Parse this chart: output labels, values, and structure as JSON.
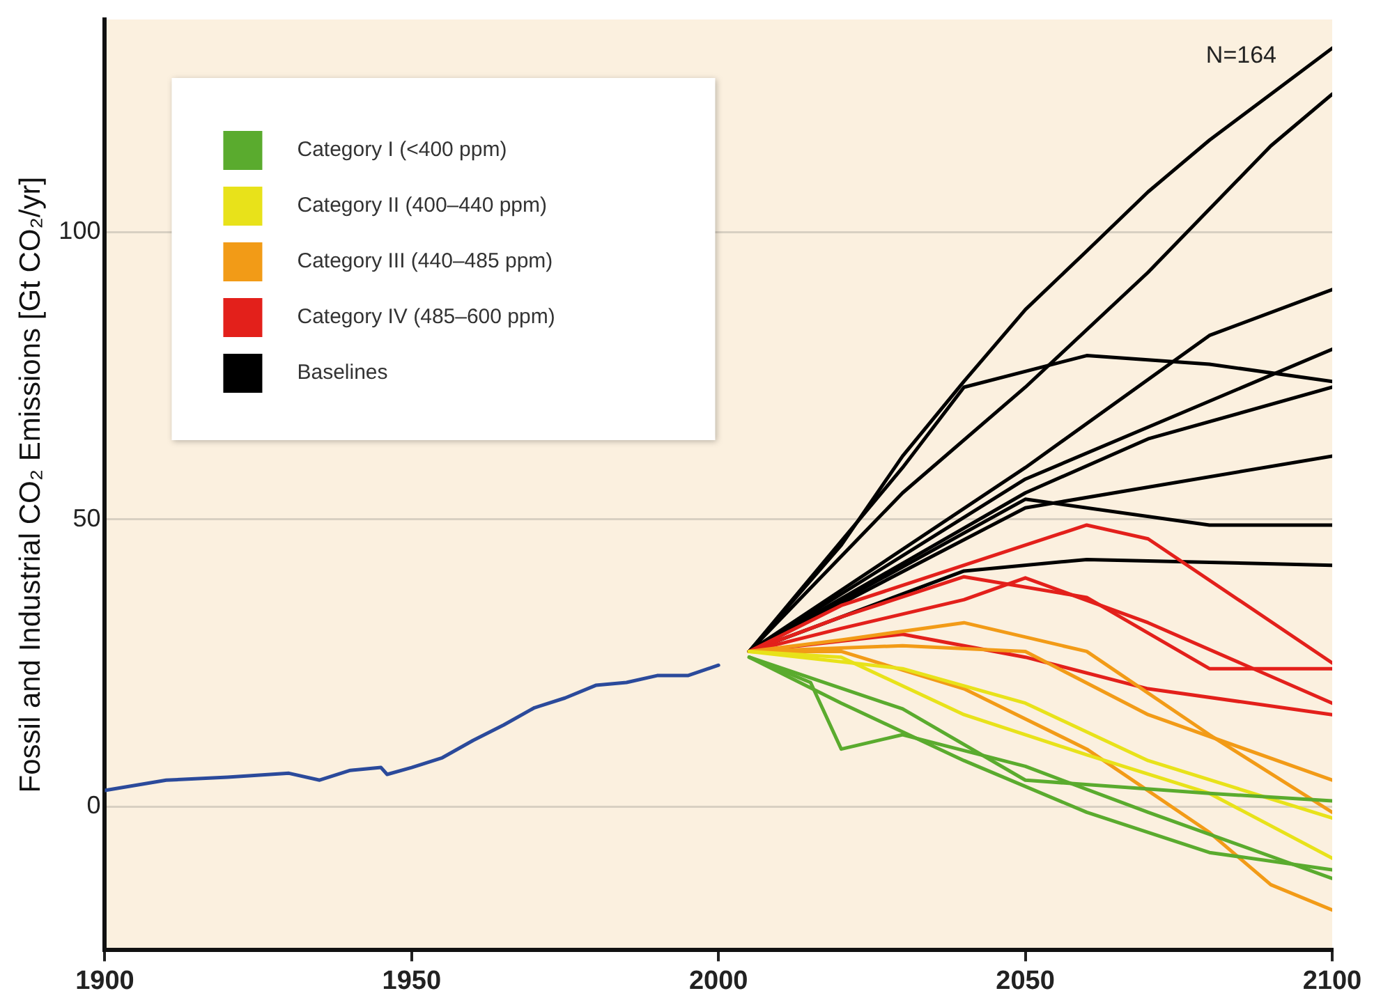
{
  "chart_data": {
    "type": "line",
    "ylabel": "Fossil and Industrial CO₂ Emissions [Gt CO₂/yr]",
    "xlim": [
      1900,
      2100
    ],
    "xticks": [
      1900,
      1950,
      2000,
      2050,
      2100
    ],
    "ylim": [
      -25,
      137
    ],
    "yticks": [
      0,
      50,
      100
    ],
    "grid": "y",
    "legend": "top left",
    "annotations": [
      "N=164"
    ],
    "series": [
      {
        "color": "#2b4a9b",
        "x": [
          1900,
          1910,
          1920,
          1930,
          1935,
          1940,
          1945,
          1946,
          1950,
          1955,
          1960,
          1965,
          1970,
          1975,
          1980,
          1985,
          1990,
          1995,
          2000
        ],
        "values": [
          2.8,
          4.6,
          5.1,
          5.8,
          4.6,
          6.3,
          6.8,
          5.6,
          6.8,
          8.5,
          11.5,
          14.2,
          17.2,
          18.9,
          21.1,
          21.6,
          22.8,
          22.8,
          24.6
        ]
      },
      {
        "name": "Category I (<400 ppm)",
        "color": "#5aab2e",
        "x": [
          2005,
          2015,
          2020,
          2030,
          2050,
          2070,
          2100
        ],
        "values": [
          26,
          21.6,
          10,
          12.5,
          7,
          -1,
          -12.5
        ]
      },
      {
        "color": "#5aab2e",
        "x": [
          2005,
          2020,
          2040,
          2060,
          2080,
          2100
        ],
        "values": [
          26,
          18,
          8,
          -1,
          -8,
          -11
        ]
      },
      {
        "color": "#5aab2e",
        "x": [
          2005,
          2030,
          2050,
          2080,
          2100
        ],
        "values": [
          26,
          17,
          4.6,
          2.3,
          1
        ]
      },
      {
        "name": "Category II (400–440 ppm)",
        "color": "#e8e21a",
        "x": [
          2005,
          2020,
          2040,
          2060,
          2080,
          2100
        ],
        "values": [
          27,
          26,
          16,
          9,
          2.3,
          -9
        ]
      },
      {
        "color": "#e8e21a",
        "x": [
          2005,
          2030,
          2050,
          2070,
          2100
        ],
        "values": [
          27,
          24,
          18,
          8,
          -2
        ]
      },
      {
        "name": "Category III (440–485 ppm)",
        "color": "#f29b17",
        "x": [
          2005,
          2020,
          2040,
          2060,
          2080,
          2100
        ],
        "values": [
          27,
          29,
          32,
          27,
          12.5,
          -1
        ]
      },
      {
        "color": "#f29b17",
        "x": [
          2005,
          2020,
          2040,
          2060,
          2080,
          2090,
          2100
        ],
        "values": [
          27,
          27,
          20.5,
          10,
          -4.5,
          -13.6,
          -18
        ]
      },
      {
        "color": "#f29b17",
        "x": [
          2005,
          2030,
          2050,
          2070,
          2100
        ],
        "values": [
          27,
          28,
          27,
          16,
          4.6
        ]
      },
      {
        "name": "Category IV (485–600 ppm)",
        "color": "#e3201b",
        "x": [
          2005,
          2020,
          2040,
          2060,
          2070,
          2100
        ],
        "values": [
          27,
          35,
          42,
          49,
          46.6,
          25
        ]
      },
      {
        "color": "#e3201b",
        "x": [
          2005,
          2020,
          2040,
          2050,
          2070,
          2100
        ],
        "values": [
          27,
          31,
          36,
          39.8,
          32,
          18
        ]
      },
      {
        "color": "#e3201b",
        "x": [
          2005,
          2030,
          2050,
          2070,
          2100
        ],
        "values": [
          27,
          30,
          26,
          20.5,
          16
        ]
      },
      {
        "color": "#e3201b",
        "x": [
          2005,
          2020,
          2040,
          2060,
          2080,
          2100
        ],
        "values": [
          27,
          33,
          40,
          36.4,
          24,
          24
        ]
      },
      {
        "name": "Baselines",
        "color": "#000000",
        "x": [
          2005,
          2020,
          2030,
          2040,
          2050,
          2060,
          2070,
          2080,
          2090,
          2100
        ],
        "values": [
          27,
          45.5,
          61,
          74,
          86.5,
          96.7,
          107,
          116,
          124,
          132
        ]
      },
      {
        "color": "#000000",
        "x": [
          2005,
          2030,
          2050,
          2070,
          2090,
          2100
        ],
        "values": [
          27,
          54.6,
          73,
          93,
          115,
          124
        ]
      },
      {
        "color": "#000000",
        "x": [
          2005,
          2030,
          2040,
          2060,
          2080,
          2100
        ],
        "values": [
          27,
          59,
          73,
          78.5,
          77,
          74
        ]
      },
      {
        "color": "#000000",
        "x": [
          2005,
          2050,
          2080,
          2100
        ],
        "values": [
          27,
          59,
          82,
          90
        ]
      },
      {
        "color": "#000000",
        "x": [
          2005,
          2050,
          2070,
          2100
        ],
        "values": [
          27,
          54.6,
          64,
          73
        ]
      },
      {
        "color": "#000000",
        "x": [
          2005,
          2050,
          2100
        ],
        "values": [
          27,
          52,
          61
        ]
      },
      {
        "color": "#000000",
        "x": [
          2005,
          2050,
          2080,
          2100
        ],
        "values": [
          27,
          53.5,
          49,
          49
        ]
      },
      {
        "color": "#000000",
        "x": [
          2005,
          2040,
          2060,
          2100
        ],
        "values": [
          27,
          41,
          43,
          42
        ]
      },
      {
        "color": "#000000",
        "x": [
          2005,
          2050,
          2100
        ],
        "values": [
          27,
          57,
          79.6
        ]
      }
    ]
  }
}
